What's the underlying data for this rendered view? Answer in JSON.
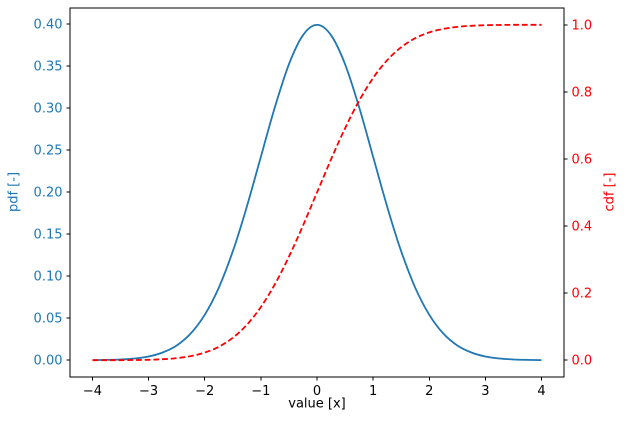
{
  "figure": {
    "background": "#ffffff",
    "frame_color": "#000000"
  },
  "chart_data": {
    "type": "line",
    "title": "",
    "xlabel": "value [x]",
    "ylabel_left": "pdf [-]",
    "ylabel_right": "cdf [-]",
    "grid": false,
    "legend": "none",
    "xlim": [
      -4.4,
      4.4
    ],
    "ylim_left": [
      -0.02,
      0.419
    ],
    "ylim_right": [
      -0.05,
      1.05
    ],
    "xticks": [
      {
        "value": -4,
        "label": "−4"
      },
      {
        "value": -3,
        "label": "−3"
      },
      {
        "value": -2,
        "label": "−2"
      },
      {
        "value": -1,
        "label": "−1"
      },
      {
        "value": 0,
        "label": "0"
      },
      {
        "value": 1,
        "label": "1"
      },
      {
        "value": 2,
        "label": "2"
      },
      {
        "value": 3,
        "label": "3"
      },
      {
        "value": 4,
        "label": "4"
      }
    ],
    "yticks_left": [
      {
        "value": 0.0,
        "label": "0.00"
      },
      {
        "value": 0.05,
        "label": "0.05"
      },
      {
        "value": 0.1,
        "label": "0.10"
      },
      {
        "value": 0.15,
        "label": "0.15"
      },
      {
        "value": 0.2,
        "label": "0.20"
      },
      {
        "value": 0.25,
        "label": "0.25"
      },
      {
        "value": 0.3,
        "label": "0.30"
      },
      {
        "value": 0.35,
        "label": "0.35"
      },
      {
        "value": 0.4,
        "label": "0.40"
      }
    ],
    "yticks_right": [
      {
        "value": 0.0,
        "label": "0.0"
      },
      {
        "value": 0.2,
        "label": "0.2"
      },
      {
        "value": 0.4,
        "label": "0.4"
      },
      {
        "value": 0.6,
        "label": "0.6"
      },
      {
        "value": 0.8,
        "label": "0.8"
      },
      {
        "value": 1.0,
        "label": "1.0"
      }
    ],
    "x": [
      -4,
      -3.75,
      -3.5,
      -3.25,
      -3,
      -2.75,
      -2.5,
      -2.25,
      -2,
      -1.75,
      -1.5,
      -1.25,
      -1,
      -0.75,
      -0.5,
      -0.25,
      0,
      0.25,
      0.5,
      0.75,
      1,
      1.25,
      1.5,
      1.75,
      2,
      2.25,
      2.5,
      2.75,
      3,
      3.25,
      3.5,
      3.75,
      4
    ],
    "series": [
      {
        "name": "pdf",
        "axis": "left",
        "color": "#1f77b4",
        "style": "solid",
        "values": [
          0.00013,
          0.00035,
          0.00087,
          0.00203,
          0.00443,
          0.00909,
          0.01753,
          0.03174,
          0.05399,
          0.08628,
          0.12952,
          0.18265,
          0.24197,
          0.30114,
          0.35207,
          0.38667,
          0.39894,
          0.38667,
          0.35207,
          0.30114,
          0.24197,
          0.18265,
          0.12952,
          0.08628,
          0.05399,
          0.03174,
          0.01753,
          0.00909,
          0.00443,
          0.00203,
          0.00087,
          0.00035,
          0.00013
        ]
      },
      {
        "name": "cdf",
        "axis": "right",
        "color": "#ff0000",
        "style": "dashed",
        "values": [
          3e-05,
          9e-05,
          0.00023,
          0.00058,
          0.00135,
          0.00298,
          0.00621,
          0.01222,
          0.02275,
          0.04006,
          0.06681,
          0.10565,
          0.15866,
          0.22663,
          0.30854,
          0.40129,
          0.5,
          0.59871,
          0.69146,
          0.77337,
          0.84134,
          0.89435,
          0.93319,
          0.95994,
          0.97725,
          0.98778,
          0.99379,
          0.99702,
          0.99865,
          0.99942,
          0.99977,
          0.99991,
          0.99997
        ]
      }
    ],
    "colors": {
      "left_axis_labels": "#1f77b4",
      "right_axis_labels": "#ff0000",
      "x_axis_labels": "#000000"
    }
  }
}
